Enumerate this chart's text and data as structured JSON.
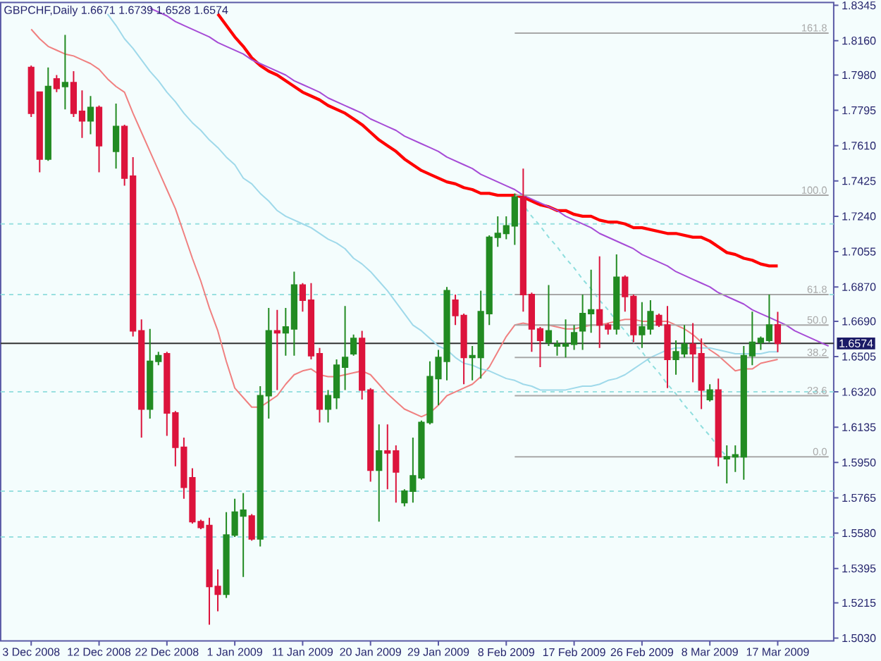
{
  "chart_data": {
    "type": "candlestick",
    "title": "GBPCHF,Daily 1.6671 1.6739 1.6528 1.6574",
    "categories": [
      "3 Dec 2008",
      null,
      null,
      null,
      null,
      null,
      null,
      null,
      "12 Dec 2008",
      null,
      null,
      null,
      null,
      null,
      null,
      null,
      "22 Dec 2008",
      null,
      null,
      null,
      null,
      null,
      null,
      null,
      "1 Jan 2009",
      null,
      null,
      null,
      null,
      null,
      null,
      null,
      "11 Jan 2009",
      null,
      null,
      null,
      null,
      null,
      null,
      null,
      "20 Jan 2009",
      null,
      null,
      null,
      null,
      null,
      null,
      null,
      "29 Jan 2009",
      null,
      null,
      null,
      null,
      null,
      null,
      null,
      "8 Feb 2009",
      null,
      null,
      null,
      null,
      null,
      null,
      null,
      "17 Feb 2009",
      null,
      null,
      null,
      null,
      null,
      null,
      null,
      "26 Feb 2009",
      null,
      null,
      null,
      null,
      null,
      null,
      null,
      "8 Mar 2009",
      null,
      null,
      null,
      null,
      null,
      null,
      null,
      "17 Mar 2009",
      null,
      null,
      null,
      null,
      null,
      null
    ],
    "ohlc": [
      [
        1.802,
        1.803,
        1.776,
        1.778
      ],
      [
        1.789,
        1.789,
        1.747,
        1.754
      ],
      [
        1.754,
        1.802,
        1.753,
        1.792
      ],
      [
        1.796,
        1.798,
        1.789,
        1.791
      ],
      [
        1.792,
        1.819,
        1.78,
        1.794
      ],
      [
        1.794,
        1.8,
        1.776,
        1.778
      ],
      [
        1.779,
        1.79,
        1.765,
        1.774
      ],
      [
        1.774,
        1.787,
        1.767,
        1.781
      ],
      [
        1.781,
        1.782,
        1.747,
        1.761
      ],
      null,
      [
        1.758,
        1.783,
        1.749,
        1.771
      ],
      [
        1.771,
        1.772,
        1.74,
        1.744
      ],
      [
        1.745,
        1.755,
        1.661,
        1.664
      ],
      [
        1.664,
        1.67,
        1.608,
        1.623
      ],
      [
        1.623,
        1.665,
        1.618,
        1.648
      ],
      [
        1.648,
        1.653,
        1.646,
        1.651
      ],
      [
        1.652,
        1.653,
        1.609,
        1.621
      ],
      [
        1.621,
        1.622,
        1.593,
        1.603
      ],
      [
        1.603,
        1.608,
        1.576,
        1.582
      ],
      [
        1.587,
        1.592,
        1.563,
        1.564
      ],
      [
        1.564,
        1.565,
        1.56,
        1.561
      ],
      [
        1.562,
        1.566,
        1.51,
        1.53
      ],
      [
        1.53,
        1.539,
        1.517,
        1.526
      ],
      [
        1.526,
        1.569,
        1.524,
        1.557
      ],
      [
        1.557,
        1.576,
        1.556,
        1.569
      ],
      [
        1.567,
        1.579,
        1.535,
        1.57
      ],
      [
        1.567,
        1.568,
        1.554,
        1.555
      ],
      [
        1.555,
        1.635,
        1.551,
        1.63
      ],
      [
        1.63,
        1.676,
        1.618,
        1.664
      ],
      [
        1.664,
        1.675,
        1.633,
        1.663
      ],
      [
        1.663,
        1.676,
        1.651,
        1.666
      ],
      [
        1.665,
        1.695,
        1.651,
        1.688
      ],
      [
        1.688,
        1.689,
        1.674,
        1.68
      ],
      [
        1.68,
        1.689,
        1.649,
        1.651
      ],
      [
        1.652,
        1.655,
        1.616,
        1.623
      ],
      [
        1.623,
        1.633,
        1.616,
        1.63
      ],
      [
        1.629,
        1.649,
        1.623,
        1.646
      ],
      [
        1.645,
        1.677,
        1.633,
        1.65
      ],
      [
        1.652,
        1.662,
        1.651,
        1.66
      ],
      [
        1.66,
        1.664,
        1.628,
        1.633
      ],
      [
        1.633,
        1.634,
        1.585,
        1.591
      ],
      [
        1.591,
        1.615,
        1.564,
        1.601
      ],
      [
        1.601,
        1.615,
        1.581,
        1.6
      ],
      [
        1.601,
        1.604,
        1.574,
        1.59
      ],
      [
        1.574,
        1.581,
        1.572,
        1.58
      ],
      [
        1.58,
        1.608,
        1.574,
        1.588
      ],
      [
        1.587,
        1.617,
        1.586,
        1.616
      ],
      [
        1.616,
        1.648,
        1.615,
        1.64
      ],
      [
        1.639,
        1.654,
        1.625,
        1.65
      ],
      [
        1.648,
        1.687,
        1.638,
        1.685
      ],
      [
        1.68,
        1.683,
        1.667,
        1.672
      ],
      [
        1.672,
        1.673,
        1.636,
        1.65
      ],
      [
        1.65,
        1.656,
        1.638,
        1.651
      ],
      [
        1.65,
        1.685,
        1.639,
        1.674
      ],
      [
        1.673,
        1.714,
        1.667,
        1.713
      ],
      [
        1.713,
        1.724,
        1.708,
        1.715
      ],
      [
        1.715,
        1.724,
        1.712,
        1.719
      ],
      [
        1.719,
        1.736,
        1.709,
        1.734
      ],
      [
        1.734,
        1.749,
        1.674,
        1.683
      ],
      [
        1.683,
        1.684,
        1.653,
        1.665
      ],
      [
        1.665,
        1.666,
        1.645,
        1.659
      ],
      [
        1.658,
        1.688,
        1.656,
        1.664
      ],
      [
        1.656,
        1.659,
        1.651,
        1.657
      ],
      [
        1.656,
        1.67,
        1.65,
        1.657
      ],
      [
        1.657,
        1.667,
        1.654,
        1.663
      ],
      [
        1.664,
        1.683,
        1.654,
        1.673
      ],
      [
        1.673,
        1.696,
        1.663,
        1.675
      ],
      [
        1.675,
        1.703,
        1.655,
        1.667
      ],
      [
        1.667,
        1.668,
        1.662,
        1.665
      ],
      [
        1.665,
        1.704,
        1.662,
        1.692
      ],
      [
        1.692,
        1.693,
        1.674,
        1.682
      ],
      [
        1.682,
        1.683,
        1.658,
        1.662
      ],
      [
        1.662,
        1.679,
        1.655,
        1.666
      ],
      [
        1.665,
        1.68,
        1.662,
        1.674
      ],
      [
        1.672,
        1.673,
        1.666,
        1.667
      ],
      [
        1.667,
        1.677,
        1.634,
        1.649
      ],
      [
        1.649,
        1.659,
        1.641,
        1.653
      ],
      [
        1.652,
        1.667,
        1.65,
        1.657
      ],
      [
        1.657,
        1.668,
        1.637,
        1.652
      ],
      [
        1.652,
        1.66,
        1.623,
        1.633
      ],
      [
        1.628,
        1.636,
        1.627,
        1.633
      ],
      [
        1.633,
        1.639,
        1.593,
        1.598
      ],
      [
        1.597,
        1.604,
        1.584,
        1.598
      ],
      [
        1.598,
        1.604,
        1.59,
        1.599
      ],
      [
        1.598,
        1.656,
        1.586,
        1.651
      ],
      [
        1.651,
        1.674,
        1.646,
        1.658
      ],
      [
        1.658,
        1.661,
        1.654,
        1.66
      ],
      [
        1.659,
        1.683,
        1.658,
        1.667
      ],
      [
        1.6671,
        1.6739,
        1.6528,
        1.6574
      ],
      null,
      null,
      null,
      null,
      null,
      null
    ],
    "colors": [
      "#dc143c",
      "#dc143c",
      "#228b22",
      "#dc143c",
      "#228b22",
      "#dc143c",
      "#dc143c",
      "#228b22",
      "#dc143c",
      null,
      "#228b22",
      "#dc143c",
      "#dc143c",
      "#dc143c",
      "#228b22",
      "#228b22",
      "#dc143c",
      "#dc143c",
      "#dc143c",
      "#dc143c",
      "#dc143c",
      "#dc143c",
      "#dc143c",
      "#228b22",
      "#228b22",
      "#228b22",
      "#dc143c",
      "#228b22",
      "#228b22",
      "#dc143c",
      "#228b22",
      "#228b22",
      "#dc143c",
      "#dc143c",
      "#dc143c",
      "#228b22",
      "#228b22",
      "#228b22",
      "#228b22",
      "#dc143c",
      "#dc143c",
      "#228b22",
      "#dc143c",
      "#dc143c",
      "#228b22",
      "#228b22",
      "#228b22",
      "#228b22",
      "#228b22",
      "#228b22",
      "#dc143c",
      "#dc143c",
      "#228b22",
      "#228b22",
      "#228b22",
      "#228b22",
      "#228b22",
      "#228b22",
      "#dc143c",
      "#dc143c",
      "#dc143c",
      "#228b22",
      "#228b22",
      "#228b22",
      "#228b22",
      "#228b22",
      "#228b22",
      "#dc143c",
      "#dc143c",
      "#228b22",
      "#dc143c",
      "#dc143c",
      "#228b22",
      "#228b22",
      "#dc143c",
      "#dc143c",
      "#228b22",
      "#228b22",
      "#dc143c",
      "#dc143c",
      "#228b22",
      "#dc143c",
      "#228b22",
      "#228b22",
      "#228b22",
      "#228b22",
      "#228b22",
      "#228b22",
      "#dc143c",
      null,
      null,
      null,
      null,
      null,
      null
    ],
    "ylim": [
      1.5015,
      1.836
    ],
    "yticks": [
      {
        "value": 1.8345,
        "label": "1.8345"
      },
      {
        "value": 1.816,
        "label": "1.8160"
      },
      {
        "value": 1.798,
        "label": "1.7980"
      },
      {
        "value": 1.7795,
        "label": "1.7795"
      },
      {
        "value": 1.761,
        "label": "1.7610"
      },
      {
        "value": 1.7425,
        "label": "1.7425"
      },
      {
        "value": 1.724,
        "label": "1.7240"
      },
      {
        "value": 1.7055,
        "label": "1.7055"
      },
      {
        "value": 1.687,
        "label": "1.6870"
      },
      {
        "value": 1.669,
        "label": "1.6690"
      },
      {
        "value": 1.6505,
        "label": "1.6505"
      },
      {
        "value": 1.632,
        "label": "1.6320"
      },
      {
        "value": 1.6135,
        "label": "1.6135"
      },
      {
        "value": 1.595,
        "label": "1.5950"
      },
      {
        "value": 1.5765,
        "label": "1.5765"
      },
      {
        "value": 1.558,
        "label": "1.5580"
      },
      {
        "value": 1.5395,
        "label": "1.5395"
      },
      {
        "value": 1.5215,
        "label": "1.5215"
      },
      {
        "value": 1.503,
        "label": "1.5030"
      }
    ],
    "series": [
      {
        "type": "line",
        "color": "#ff0000",
        "values": [
          null,
          null,
          null,
          null,
          null,
          null,
          null,
          null,
          null,
          null,
          null,
          null,
          null,
          null,
          null,
          null,
          null,
          null,
          null,
          null,
          null,
          null,
          1.83,
          1.824,
          1.818,
          1.813,
          1.807,
          1.803,
          1.8,
          1.798,
          1.795,
          1.792,
          1.789,
          1.787,
          1.785,
          1.782,
          1.78,
          1.778,
          1.775,
          1.772,
          1.768,
          1.764,
          1.761,
          1.758,
          1.754,
          1.751,
          1.748,
          1.746,
          1.744,
          1.742,
          1.741,
          1.739,
          1.738,
          1.736,
          1.736,
          1.735,
          1.735,
          1.735,
          1.734,
          1.732,
          1.73,
          1.729,
          1.727,
          1.727,
          1.725,
          1.724,
          1.724,
          1.722,
          1.721,
          1.721,
          1.72,
          1.718,
          1.718,
          1.717,
          1.716,
          1.715,
          1.715,
          1.714,
          1.713,
          1.713,
          1.711,
          1.708,
          1.705,
          1.704,
          1.702,
          1.701,
          1.699,
          1.698,
          1.698,
          null,
          null,
          null,
          null,
          null,
          null
        ]
      },
      {
        "type": "line",
        "color": "#f08080",
        "values": [
          1.822,
          1.817,
          1.813,
          1.811,
          1.809,
          1.808,
          1.806,
          1.804,
          1.801,
          1.796,
          1.792,
          1.789,
          1.778,
          1.768,
          1.758,
          1.748,
          1.738,
          1.728,
          1.715,
          1.702,
          1.69,
          1.676,
          1.664,
          1.648,
          1.634,
          1.629,
          1.624,
          1.624,
          1.627,
          1.63,
          1.636,
          1.641,
          1.643,
          1.644,
          1.641,
          1.64,
          1.64,
          1.641,
          1.642,
          1.643,
          1.641,
          1.636,
          1.631,
          1.627,
          1.623,
          1.621,
          1.619,
          1.621,
          1.625,
          1.63,
          1.632,
          1.634,
          1.636,
          1.64,
          1.645,
          1.653,
          1.661,
          1.667,
          1.668,
          1.667,
          1.667,
          1.667,
          1.666,
          1.665,
          1.665,
          1.666,
          1.667,
          1.667,
          1.668,
          1.669,
          1.67,
          1.67,
          1.669,
          1.669,
          1.669,
          1.669,
          1.667,
          1.665,
          1.662,
          1.658,
          1.654,
          1.651,
          1.647,
          1.643,
          1.644,
          1.644,
          1.647,
          1.648,
          1.649,
          null,
          null,
          null,
          null,
          null,
          null
        ]
      },
      {
        "type": "line",
        "color": "#9fd9ea",
        "values": [
          null,
          null,
          null,
          null,
          null,
          null,
          null,
          null,
          null,
          1.83,
          1.824,
          1.817,
          1.812,
          1.806,
          1.8,
          1.795,
          1.789,
          1.784,
          1.778,
          1.773,
          1.769,
          1.764,
          1.76,
          1.755,
          1.751,
          1.744,
          1.741,
          1.736,
          1.732,
          1.727,
          1.724,
          1.722,
          1.72,
          1.718,
          1.715,
          1.712,
          1.71,
          1.707,
          1.702,
          1.699,
          1.695,
          1.69,
          1.685,
          1.679,
          1.673,
          1.667,
          1.664,
          1.66,
          1.656,
          1.654,
          1.65,
          1.647,
          1.646,
          1.644,
          1.643,
          1.641,
          1.639,
          1.638,
          1.636,
          1.635,
          1.633,
          1.633,
          1.633,
          1.633,
          1.634,
          1.635,
          1.635,
          1.636,
          1.638,
          1.639,
          1.641,
          1.644,
          1.647,
          1.65,
          1.652,
          1.654,
          1.655,
          1.655,
          1.655,
          1.655,
          1.655,
          1.654,
          1.653,
          1.652,
          1.652,
          1.652,
          1.652,
          1.653,
          1.653,
          null,
          null,
          null,
          null,
          null,
          null
        ]
      },
      {
        "type": "line",
        "color": "#a64bd6",
        "values": [
          null,
          null,
          null,
          null,
          null,
          null,
          null,
          null,
          null,
          null,
          null,
          null,
          null,
          null,
          1.833,
          1.831,
          1.829,
          1.826,
          1.824,
          1.822,
          1.82,
          1.818,
          1.815,
          1.813,
          1.811,
          1.809,
          1.806,
          1.804,
          1.802,
          1.8,
          1.798,
          1.795,
          1.793,
          1.791,
          1.789,
          1.786,
          1.784,
          1.782,
          1.78,
          1.778,
          1.775,
          1.773,
          1.771,
          1.769,
          1.766,
          1.764,
          1.762,
          1.76,
          1.758,
          1.755,
          1.753,
          1.751,
          1.749,
          1.746,
          1.744,
          1.742,
          1.74,
          1.738,
          1.735,
          1.733,
          1.731,
          1.729,
          1.727,
          1.724,
          1.722,
          1.72,
          1.718,
          1.715,
          1.713,
          1.711,
          1.709,
          1.707,
          1.704,
          1.702,
          1.7,
          1.698,
          1.695,
          1.693,
          1.691,
          1.689,
          1.687,
          1.684,
          1.682,
          1.68,
          1.678,
          1.675,
          1.673,
          1.671,
          1.669,
          1.667,
          1.664,
          1.662,
          1.66,
          1.658,
          1.656
        ]
      },
      {
        "type": "line",
        "color": "#8fdede",
        "line_style": "dashed",
        "values": [
          null,
          null,
          null,
          null,
          null,
          null,
          null,
          null,
          null,
          null,
          null,
          null,
          null,
          null,
          null,
          null,
          null,
          null,
          null,
          null,
          null,
          null,
          null,
          null,
          null,
          null,
          null,
          null,
          null,
          null,
          null,
          null,
          null,
          null,
          null,
          null,
          null,
          null,
          null,
          null,
          null,
          null,
          null,
          null,
          null,
          null,
          null,
          null,
          null,
          null,
          null,
          null,
          null,
          null,
          null,
          null,
          null,
          1.735,
          1.73,
          1.724,
          1.719,
          1.713,
          1.708,
          1.702,
          1.697,
          1.691,
          1.686,
          1.68,
          1.675,
          1.669,
          1.664,
          1.658,
          1.653,
          1.647,
          1.642,
          1.636,
          1.631,
          1.625,
          1.62,
          1.614,
          1.609,
          1.603,
          1.598,
          null,
          null,
          null,
          null,
          null,
          null,
          null,
          null,
          null,
          null,
          null,
          null
        ]
      },
      {
        "type": "line",
        "name": "161.8",
        "color": "#a8a8a8",
        "values": [
          null,
          null,
          null,
          null,
          null,
          null,
          null,
          null,
          null,
          null,
          null,
          null,
          null,
          null,
          null,
          null,
          null,
          null,
          null,
          null,
          null,
          null,
          null,
          null,
          null,
          null,
          null,
          null,
          null,
          null,
          null,
          null,
          null,
          null,
          null,
          null,
          null,
          null,
          null,
          null,
          null,
          null,
          null,
          null,
          null,
          null,
          null,
          null,
          null,
          null,
          null,
          null,
          null,
          null,
          null,
          null,
          null,
          1.82,
          1.82,
          1.82,
          1.82,
          1.82,
          1.82,
          1.82,
          1.82,
          1.82,
          1.82,
          1.82,
          1.82,
          1.82,
          1.82,
          1.82,
          1.82,
          1.82,
          1.82,
          1.82,
          1.82,
          1.82,
          1.82,
          1.82,
          1.82,
          1.82,
          1.82,
          1.82,
          1.82,
          1.82,
          1.82,
          1.82,
          1.82,
          1.82,
          1.82,
          1.82,
          1.82,
          1.82,
          1.82
        ]
      },
      {
        "type": "line",
        "name": "100.0",
        "color": "#a8a8a8",
        "values": [
          null,
          null,
          null,
          null,
          null,
          null,
          null,
          null,
          null,
          null,
          null,
          null,
          null,
          null,
          null,
          null,
          null,
          null,
          null,
          null,
          null,
          null,
          null,
          null,
          null,
          null,
          null,
          null,
          null,
          null,
          null,
          null,
          null,
          null,
          null,
          null,
          null,
          null,
          null,
          null,
          null,
          null,
          null,
          null,
          null,
          null,
          null,
          null,
          null,
          null,
          null,
          null,
          null,
          null,
          null,
          null,
          null,
          1.735,
          1.735,
          1.735,
          1.735,
          1.735,
          1.735,
          1.735,
          1.735,
          1.735,
          1.735,
          1.735,
          1.735,
          1.735,
          1.735,
          1.735,
          1.735,
          1.735,
          1.735,
          1.735,
          1.735,
          1.735,
          1.735,
          1.735,
          1.735,
          1.735,
          1.735,
          1.735,
          1.735,
          1.735,
          1.735,
          1.735,
          1.735,
          1.735,
          1.735,
          1.735,
          1.735,
          1.735,
          1.735
        ]
      },
      {
        "type": "line",
        "name": "61.8",
        "color": "#a8a8a8",
        "values": [
          null,
          null,
          null,
          null,
          null,
          null,
          null,
          null,
          null,
          null,
          null,
          null,
          null,
          null,
          null,
          null,
          null,
          null,
          null,
          null,
          null,
          null,
          null,
          null,
          null,
          null,
          null,
          null,
          null,
          null,
          null,
          null,
          null,
          null,
          null,
          null,
          null,
          null,
          null,
          null,
          null,
          null,
          null,
          null,
          null,
          null,
          null,
          null,
          null,
          null,
          null,
          null,
          null,
          null,
          null,
          null,
          null,
          1.683,
          1.683,
          1.683,
          1.683,
          1.683,
          1.683,
          1.683,
          1.683,
          1.683,
          1.683,
          1.683,
          1.683,
          1.683,
          1.683,
          1.683,
          1.683,
          1.683,
          1.683,
          1.683,
          1.683,
          1.683,
          1.683,
          1.683,
          1.683,
          1.683,
          1.683,
          1.683,
          1.683,
          1.683,
          1.683,
          1.683,
          1.683,
          1.683,
          1.683,
          1.683,
          1.683,
          1.683,
          1.683
        ]
      },
      {
        "type": "line",
        "name": "50.0",
        "color": "#a8a8a8",
        "values": [
          null,
          null,
          null,
          null,
          null,
          null,
          null,
          null,
          null,
          null,
          null,
          null,
          null,
          null,
          null,
          null,
          null,
          null,
          null,
          null,
          null,
          null,
          null,
          null,
          null,
          null,
          null,
          null,
          null,
          null,
          null,
          null,
          null,
          null,
          null,
          null,
          null,
          null,
          null,
          null,
          null,
          null,
          null,
          null,
          null,
          null,
          null,
          null,
          null,
          null,
          null,
          null,
          null,
          null,
          null,
          null,
          null,
          1.667,
          1.667,
          1.667,
          1.667,
          1.667,
          1.667,
          1.667,
          1.667,
          1.667,
          1.667,
          1.667,
          1.667,
          1.667,
          1.667,
          1.667,
          1.667,
          1.667,
          1.667,
          1.667,
          1.667,
          1.667,
          1.667,
          1.667,
          1.667,
          1.667,
          1.667,
          1.667,
          1.667,
          1.667,
          1.667,
          1.667,
          1.667,
          1.667,
          1.667,
          1.667,
          1.667,
          1.667,
          1.667
        ]
      },
      {
        "type": "line",
        "name": "38.2",
        "color": "#a8a8a8",
        "values": [
          null,
          null,
          null,
          null,
          null,
          null,
          null,
          null,
          null,
          null,
          null,
          null,
          null,
          null,
          null,
          null,
          null,
          null,
          null,
          null,
          null,
          null,
          null,
          null,
          null,
          null,
          null,
          null,
          null,
          null,
          null,
          null,
          null,
          null,
          null,
          null,
          null,
          null,
          null,
          null,
          null,
          null,
          null,
          null,
          null,
          null,
          null,
          null,
          null,
          null,
          null,
          null,
          null,
          null,
          null,
          null,
          null,
          1.65,
          1.65,
          1.65,
          1.65,
          1.65,
          1.65,
          1.65,
          1.65,
          1.65,
          1.65,
          1.65,
          1.65,
          1.65,
          1.65,
          1.65,
          1.65,
          1.65,
          1.65,
          1.65,
          1.65,
          1.65,
          1.65,
          1.65,
          1.65,
          1.65,
          1.65,
          1.65,
          1.65,
          1.65,
          1.65,
          1.65,
          1.65,
          1.65,
          1.65,
          1.65,
          1.65,
          1.65,
          1.65
        ]
      },
      {
        "type": "line",
        "name": "23.6",
        "color": "#a8a8a8",
        "values": [
          null,
          null,
          null,
          null,
          null,
          null,
          null,
          null,
          null,
          null,
          null,
          null,
          null,
          null,
          null,
          null,
          null,
          null,
          null,
          null,
          null,
          null,
          null,
          null,
          null,
          null,
          null,
          null,
          null,
          null,
          null,
          null,
          null,
          null,
          null,
          null,
          null,
          null,
          null,
          null,
          null,
          null,
          null,
          null,
          null,
          null,
          null,
          null,
          null,
          null,
          null,
          null,
          null,
          null,
          null,
          null,
          null,
          1.63,
          1.63,
          1.63,
          1.63,
          1.63,
          1.63,
          1.63,
          1.63,
          1.63,
          1.63,
          1.63,
          1.63,
          1.63,
          1.63,
          1.63,
          1.63,
          1.63,
          1.63,
          1.63,
          1.63,
          1.63,
          1.63,
          1.63,
          1.63,
          1.63,
          1.63,
          1.63,
          1.63,
          1.63,
          1.63,
          1.63,
          1.63,
          1.63,
          1.63,
          1.63,
          1.63,
          1.63,
          1.63
        ]
      },
      {
        "type": "line",
        "name": "0.0",
        "color": "#a8a8a8",
        "values": [
          null,
          null,
          null,
          null,
          null,
          null,
          null,
          null,
          null,
          null,
          null,
          null,
          null,
          null,
          null,
          null,
          null,
          null,
          null,
          null,
          null,
          null,
          null,
          null,
          null,
          null,
          null,
          null,
          null,
          null,
          null,
          null,
          null,
          null,
          null,
          null,
          null,
          null,
          null,
          null,
          null,
          null,
          null,
          null,
          null,
          null,
          null,
          null,
          null,
          null,
          null,
          null,
          null,
          null,
          null,
          null,
          null,
          1.598,
          1.598,
          1.598,
          1.598,
          1.598,
          1.598,
          1.598,
          1.598,
          1.598,
          1.598,
          1.598,
          1.598,
          1.598,
          1.598,
          1.598,
          1.598,
          1.598,
          1.598,
          1.598,
          1.598,
          1.598,
          1.598,
          1.598,
          1.598,
          1.598,
          1.598,
          1.598,
          1.598,
          1.598,
          1.598,
          1.598,
          1.598,
          1.598,
          1.598,
          1.598,
          1.598,
          1.598,
          1.598
        ]
      }
    ],
    "ref_lines": [
      {
        "axis": "y",
        "value": 1.72,
        "color": "#99e0e0",
        "line_style": "dashed"
      },
      {
        "axis": "y",
        "value": 1.683,
        "color": "#99e0e0",
        "line_style": "dashed"
      },
      {
        "axis": "y",
        "value": 1.632,
        "color": "#99e0e0",
        "line_style": "dashed"
      },
      {
        "axis": "y",
        "value": 1.58,
        "color": "#99e0e0",
        "line_style": "dashed"
      },
      {
        "axis": "y",
        "value": 1.556,
        "color": "#99e0e0",
        "line_style": "dashed"
      },
      {
        "axis": "y",
        "value": 1.6574,
        "label": "1.6574",
        "color": "#333333"
      }
    ]
  }
}
